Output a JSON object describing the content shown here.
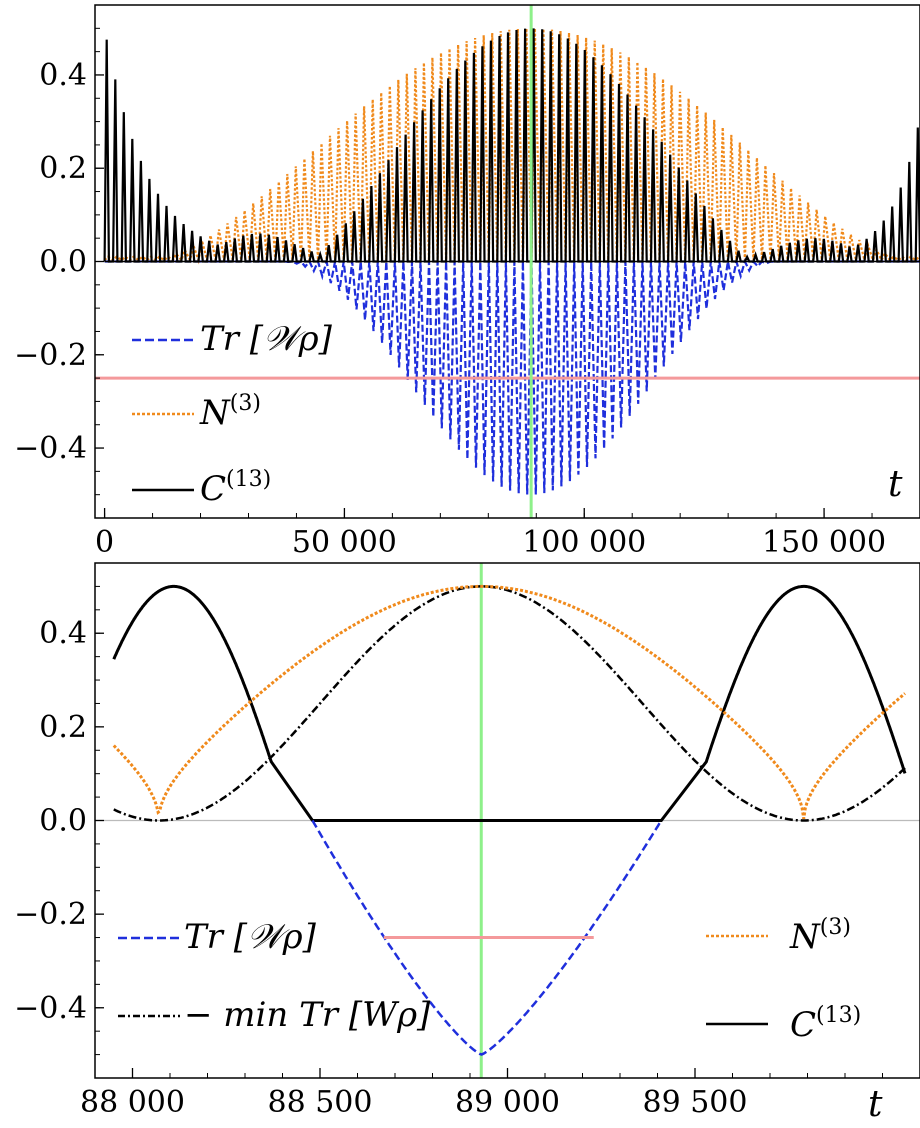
{
  "colors": {
    "witness": "#1f2fdc",
    "negativity": "#f08a1c",
    "concurrence": "#000000",
    "minWitness": "#000000",
    "threshold": "#f4999b",
    "marker": "#8ef08a",
    "zeroline": "#bbbbbb"
  },
  "chart_data": [
    {
      "type": "line",
      "xlabel": "t",
      "xlim": [
        -2000,
        170000
      ],
      "ylim": [
        -0.55,
        0.55
      ],
      "xticks": [
        0,
        50000,
        100000,
        150000
      ],
      "xtick_labels": [
        "0",
        "50 000",
        "100 000",
        "150 000"
      ],
      "yticks": [
        -0.4,
        -0.2,
        0.0,
        0.2,
        0.4
      ],
      "ytick_labels": [
        "−0.4",
        "−0.2",
        "0.0",
        "0.2",
        "0.4"
      ],
      "grid": false,
      "legend_position": "left",
      "series": [
        {
          "name": "Tr [𝒲ρ]",
          "style": "dashed",
          "color": "witness",
          "envelope_min": -0.5,
          "t_peak": 88930,
          "oscillating": true
        },
        {
          "name": "N(3)",
          "style": "dotted",
          "color": "negativity",
          "envelope_max": 0.5,
          "t_peak": 88930,
          "oscillating": true
        },
        {
          "name": "C(13)",
          "style": "solid",
          "color": "concurrence",
          "max": 0.5,
          "oscillating": true
        }
      ],
      "reference_lines": {
        "horizontal_y": -0.25,
        "vertical_x": 88930
      }
    },
    {
      "type": "line",
      "xlabel": "t",
      "xlim": [
        87900,
        90100
      ],
      "ylim": [
        -0.55,
        0.55
      ],
      "xticks": [
        88000,
        88500,
        89000,
        89500
      ],
      "xtick_labels": [
        "88 000",
        "88 500",
        "89 000",
        "89 500"
      ],
      "yticks": [
        -0.4,
        -0.2,
        0.0,
        0.2,
        0.4
      ],
      "ytick_labels": [
        "−0.4",
        "−0.2",
        "0.0",
        "0.2",
        "0.4"
      ],
      "grid": false,
      "series": [
        {
          "name": "Tr [𝒲ρ]",
          "style": "dashed",
          "color": "witness",
          "min": -0.5,
          "x_at_min": 88930,
          "nonzero_range": [
            88480,
            89410
          ]
        },
        {
          "name": "− min Tr [Wρ]",
          "style": "dashdot",
          "color": "minWitness",
          "max": 0.5,
          "x_at_max": 88930
        },
        {
          "name": "N(3)",
          "style": "dotted",
          "color": "negativity",
          "max": 0.5,
          "zeros": [
            88110,
            89790
          ]
        },
        {
          "name": "C(13)",
          "style": "solid",
          "color": "concurrence",
          "max": 0.5,
          "peaks": [
            88110,
            89790
          ],
          "zero_range": [
            88480,
            89410
          ]
        }
      ],
      "threshold_segment": {
        "y": -0.25,
        "x_range": [
          88670,
          89230
        ]
      },
      "reference_lines": {
        "vertical_x": 88930
      }
    }
  ],
  "legends": {
    "top": [
      {
        "label": "Tr [𝒲ρ]",
        "sup": ""
      },
      {
        "label": "N",
        "sup": "(3)"
      },
      {
        "label": "C",
        "sup": "(13)"
      }
    ],
    "bottom_left": [
      {
        "label": "Tr [𝒲ρ]",
        "sup": ""
      },
      {
        "label": "− min Tr [Wρ]",
        "sup": ""
      }
    ],
    "bottom_right": [
      {
        "label": "N",
        "sup": "(3)"
      },
      {
        "label": "C",
        "sup": "(13)"
      }
    ]
  }
}
